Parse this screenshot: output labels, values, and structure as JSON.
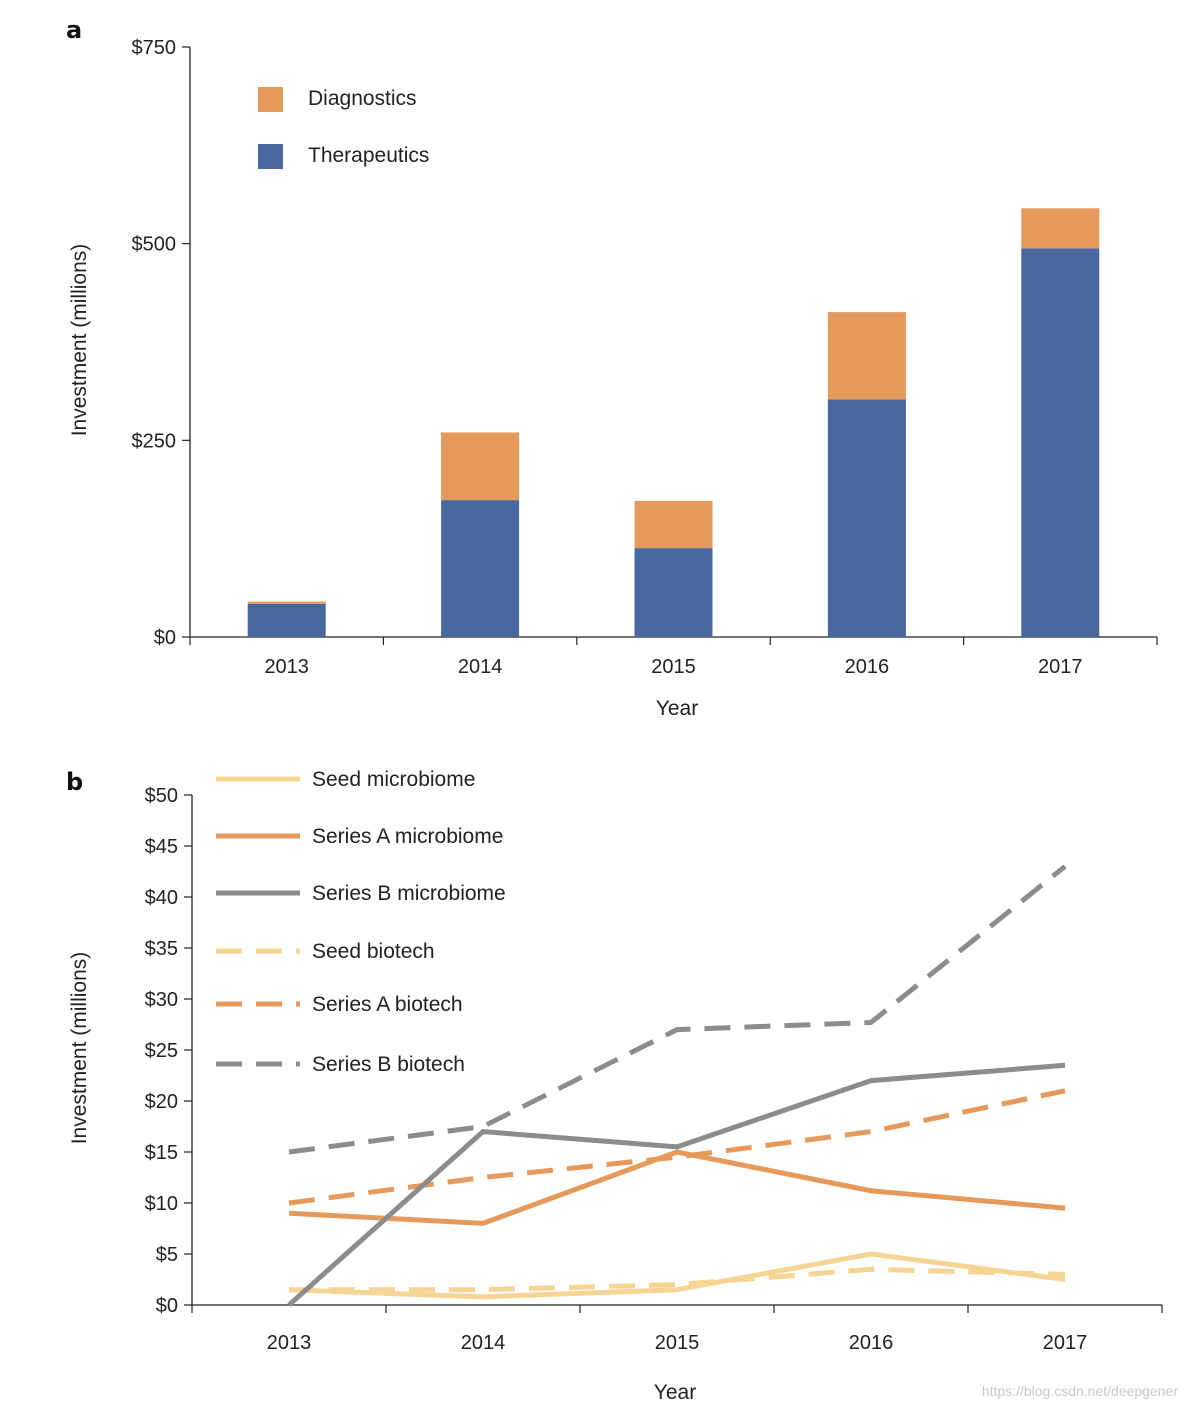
{
  "chart_data": [
    {
      "panel": "a",
      "type": "bar",
      "stacked": true,
      "categories": [
        "2013",
        "2014",
        "2015",
        "2016",
        "2017"
      ],
      "series": [
        {
          "name": "Therapeutics",
          "color": "#4a68a0",
          "values": [
            42,
            174,
            113,
            302,
            494
          ]
        },
        {
          "name": "Diagnostics",
          "color": "#e59a5c",
          "values": [
            3,
            86,
            60,
            111,
            51
          ]
        }
      ],
      "legend_order": [
        "Diagnostics",
        "Therapeutics"
      ],
      "xlabel": "Year",
      "ylabel": "Investment (millions)",
      "ylim": [
        0,
        750
      ],
      "yticks": [
        0,
        250,
        500,
        750
      ],
      "ytick_labels": [
        "$0",
        "$250",
        "$500",
        "$750"
      ],
      "legend_position": "top-left"
    },
    {
      "panel": "b",
      "type": "line",
      "x": [
        "2013",
        "2014",
        "2015",
        "2016",
        "2017"
      ],
      "series": [
        {
          "name": "Seed microbiome",
          "color": "#f5d494",
          "dashed": false,
          "values": [
            1.5,
            0.8,
            1.5,
            5.0,
            2.5
          ]
        },
        {
          "name": "Series A microbiome",
          "color": "#e59a5c",
          "dashed": false,
          "values": [
            9.0,
            8.0,
            15.0,
            11.2,
            9.5
          ]
        },
        {
          "name": "Series B microbiome",
          "color": "#8c8c8c",
          "dashed": false,
          "values": [
            0.0,
            17.0,
            15.5,
            22.0,
            23.5
          ]
        },
        {
          "name": "Seed biotech",
          "color": "#f5d494",
          "dashed": true,
          "values": [
            1.5,
            1.5,
            2.0,
            3.5,
            3.0
          ]
        },
        {
          "name": "Series A biotech",
          "color": "#e59a5c",
          "dashed": true,
          "values": [
            10.0,
            12.5,
            14.5,
            17.0,
            21.0
          ]
        },
        {
          "name": "Series B biotech",
          "color": "#8c8c8c",
          "dashed": true,
          "values": [
            15.0,
            17.5,
            27.0,
            27.7,
            43.0
          ]
        }
      ],
      "xlabel": "Year",
      "ylabel": "Investment (millions)",
      "ylim": [
        0,
        50
      ],
      "yticks": [
        0,
        5,
        10,
        15,
        20,
        25,
        30,
        35,
        40,
        45,
        50
      ],
      "ytick_labels": [
        "$0",
        "$5",
        "$10",
        "$15",
        "$20",
        "$25",
        "$30",
        "$35",
        "$40",
        "$45",
        "$50"
      ],
      "legend_position": "top-left"
    }
  ],
  "panel_labels": {
    "a": "a",
    "b": "b"
  },
  "watermark": "https://blog.csdn.net/deepgener"
}
